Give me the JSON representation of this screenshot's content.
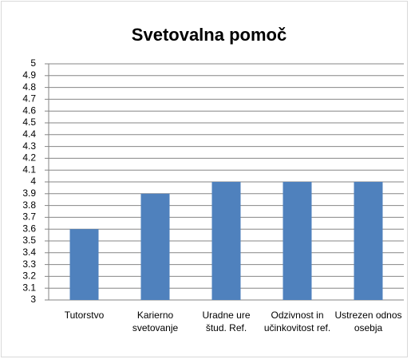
{
  "chart_data": {
    "type": "bar",
    "title": "Svetovalna pomoč",
    "categories": [
      "Tutorstvo",
      "Karierno svetovanje",
      "Uradne ure štud. Ref.",
      "Odzivnost in učinkovitost ref.",
      "Ustrezen odnos osebja"
    ],
    "values": [
      3.6,
      3.9,
      4,
      4,
      4
    ],
    "color": "#4f81bd",
    "ylim": [
      3,
      5
    ],
    "yticks": [
      3,
      3.1,
      3.2,
      3.3,
      3.4,
      3.5,
      3.6,
      3.7,
      3.8,
      3.9,
      4,
      4.1,
      4.2,
      4.3,
      4.4,
      4.5,
      4.6,
      4.7,
      4.8,
      4.9,
      5
    ],
    "grid": true
  }
}
